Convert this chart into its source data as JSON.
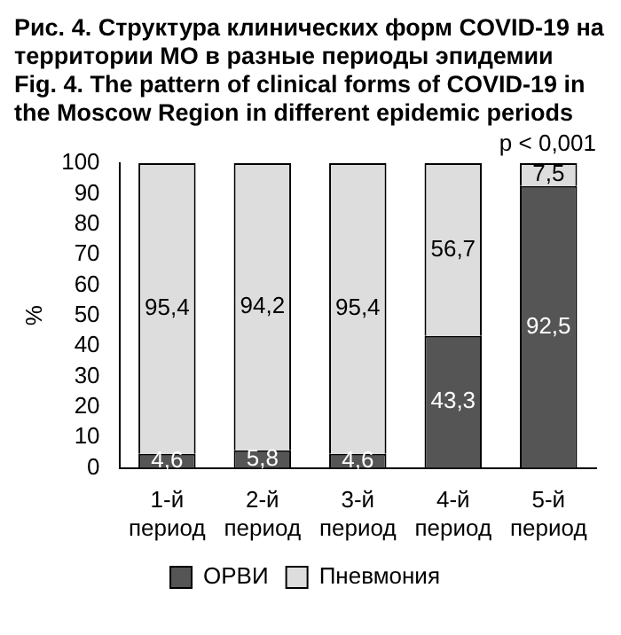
{
  "chart_data": {
    "type": "bar",
    "title": "Рис. 4. Структура клинических форм COVID-19 на территории МО в разные периоды эпидемии",
    "subtitle": "Fig. 4. The pattern of clinical forms of COVID-19 in the Moscow Region in different epidemic periods",
    "categories": [
      "1-й период",
      "2-й период",
      "3-й период",
      "4-й период",
      "5-й период"
    ],
    "series": [
      {
        "name": "ОРВИ",
        "color": "#555555",
        "values": [
          4.6,
          5.8,
          4.6,
          43.3,
          92.5
        ],
        "value_labels": [
          "4,6",
          "5,8",
          "4,6",
          "43,3",
          "92,5"
        ]
      },
      {
        "name": "Пневмония",
        "color": "#dddddd",
        "values": [
          95.4,
          94.2,
          95.4,
          56.7,
          7.5
        ],
        "value_labels": [
          "95,4",
          "94,2",
          "95,4",
          "56,7",
          "7,5"
        ]
      }
    ],
    "stacked": true,
    "ylabel": "%",
    "ylim": [
      0,
      100
    ],
    "yticks": [
      0,
      10,
      20,
      30,
      40,
      50,
      60,
      70,
      80,
      90,
      100
    ],
    "annotations": [
      "p < 0,001"
    ],
    "legend": "bottom",
    "grid": false
  }
}
